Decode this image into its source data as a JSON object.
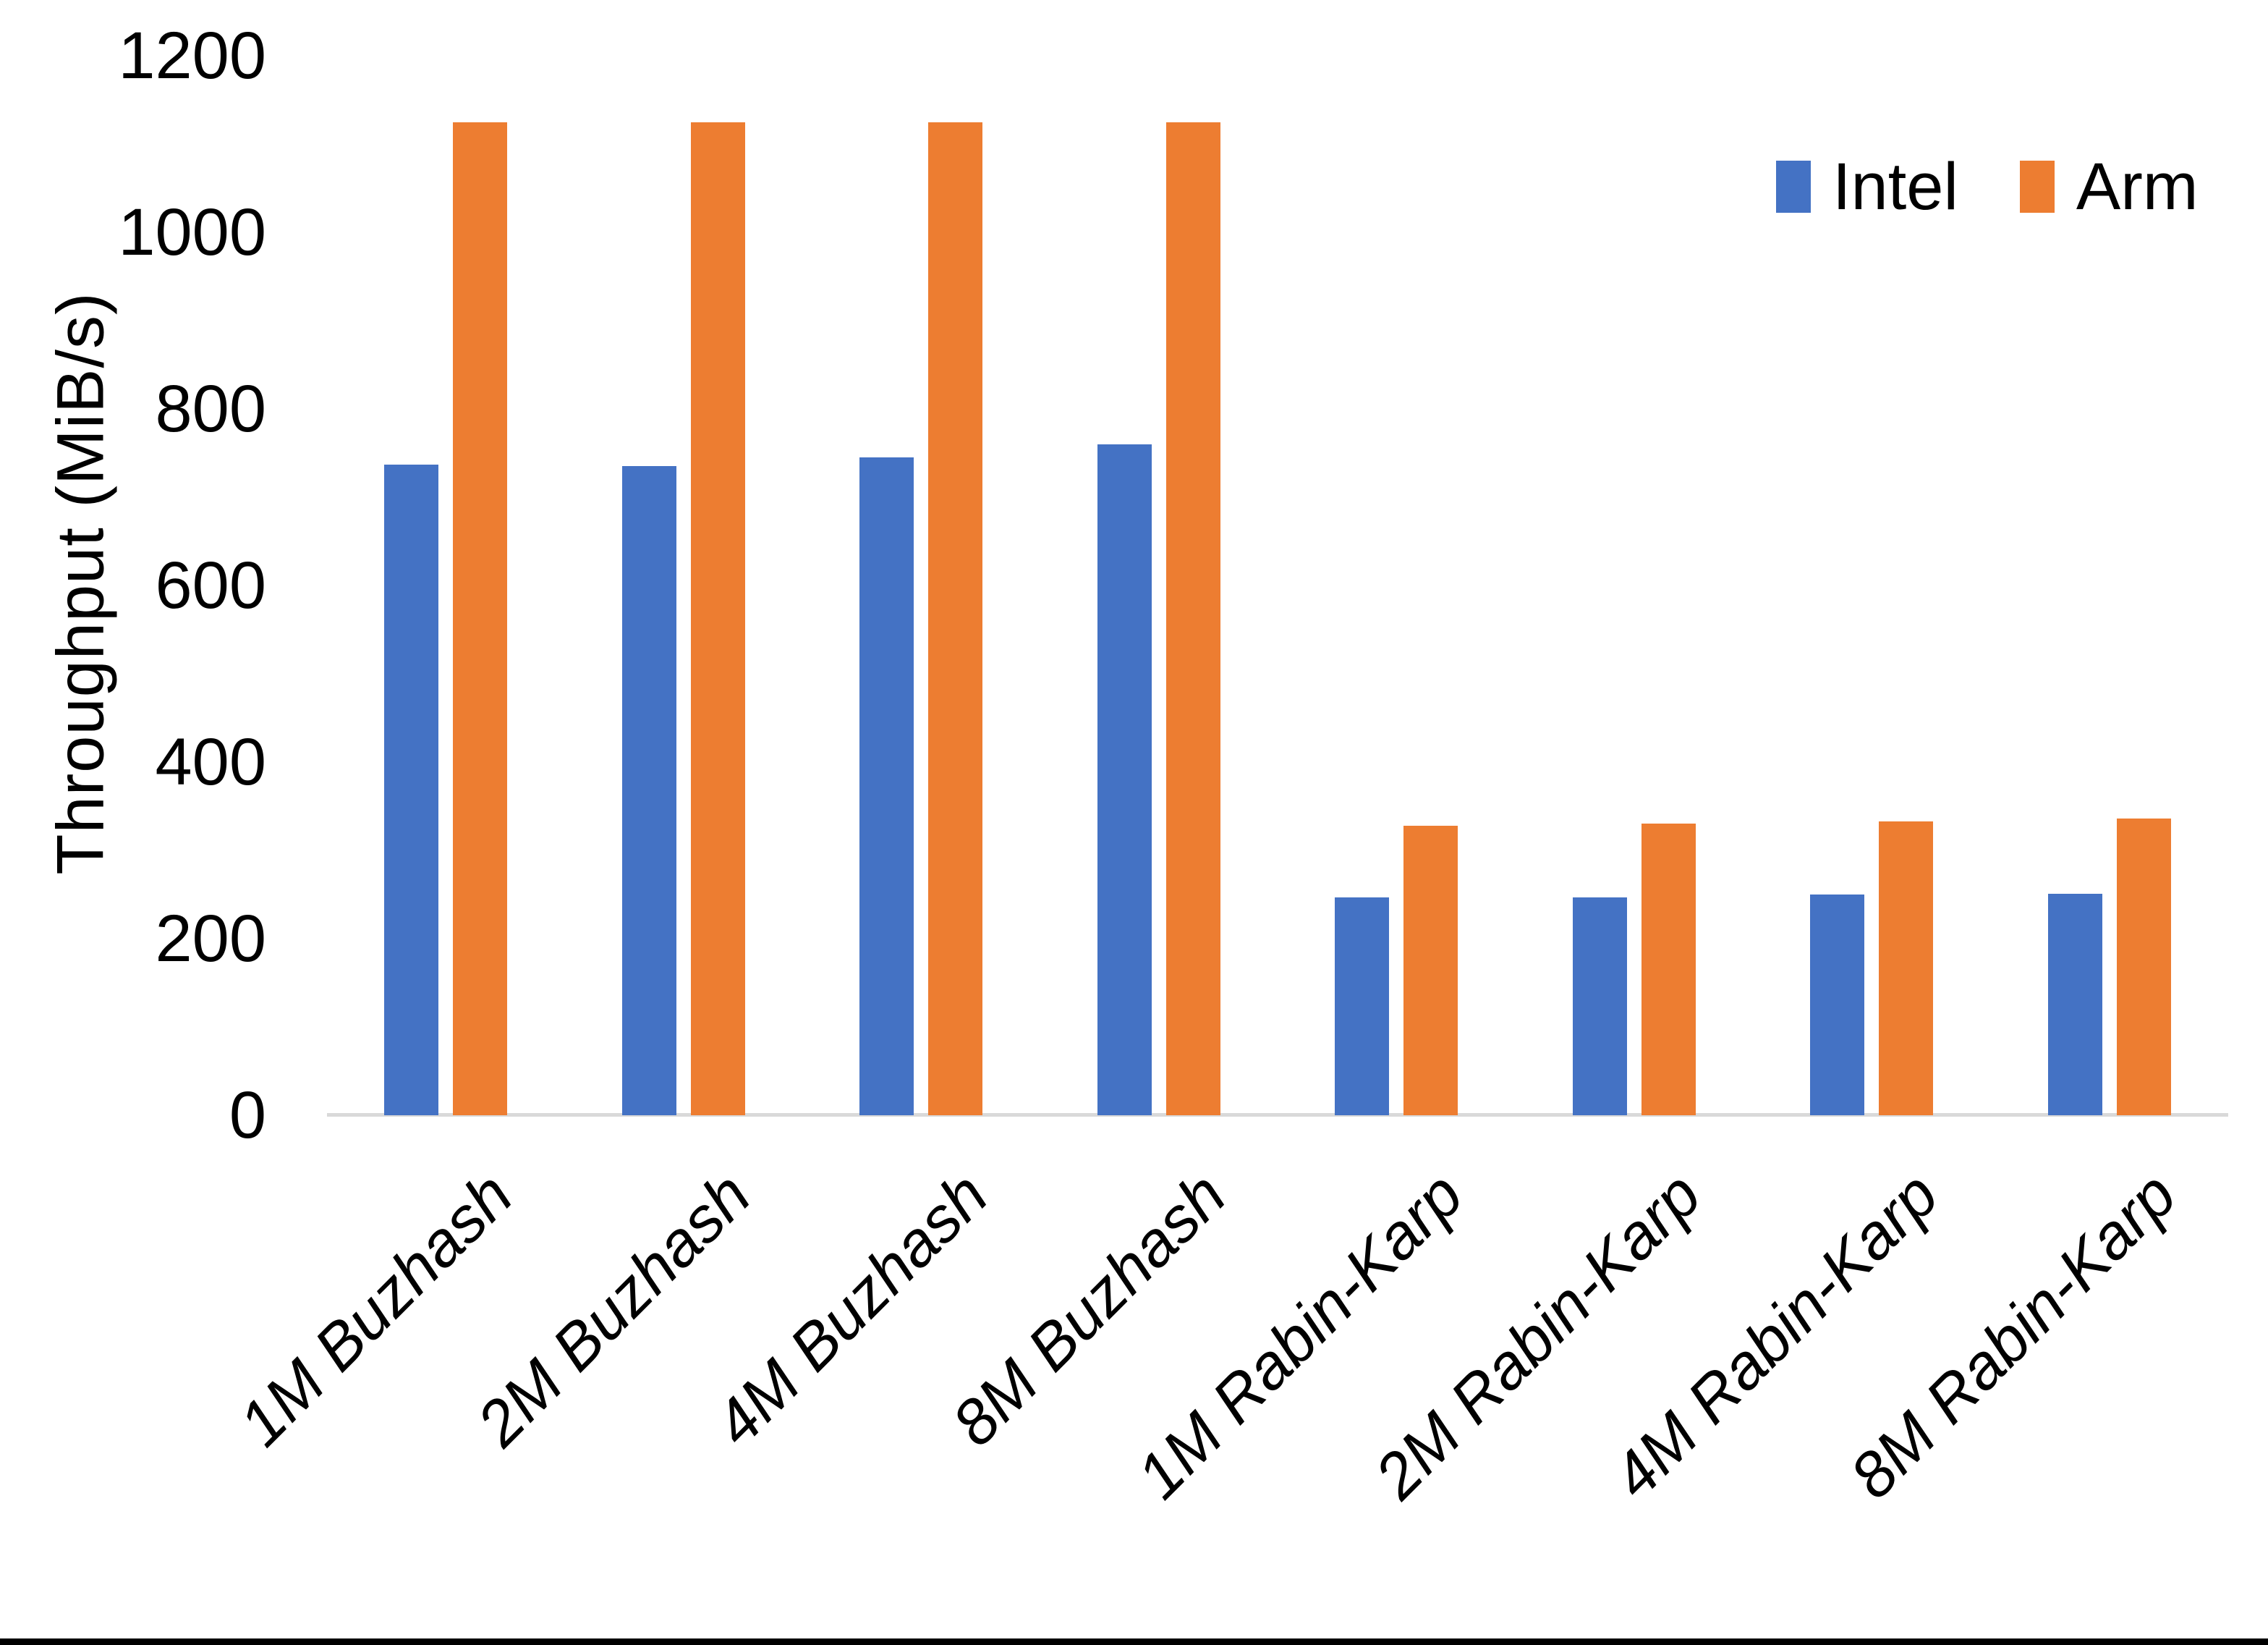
{
  "chart_data": {
    "type": "bar",
    "title": "",
    "xlabel": "",
    "ylabel": "Throughput (MiB/s)",
    "ylim": [
      0,
      1200
    ],
    "yticks": [
      0,
      200,
      400,
      600,
      800,
      1000,
      1200
    ],
    "grid": false,
    "legend_position": "top-right",
    "background_color": "#ffffff",
    "axis_line_color": "#d9d9d9",
    "text_color": "#000000",
    "categories": [
      "1M Buzhash",
      "2M Buzhash",
      "4M Buzhash",
      "8M Buzhash",
      "1M Rabin-Karp",
      "2M Rabin-Karp",
      "4M Rabin-Karp",
      "8M Rabin-Karp"
    ],
    "series": [
      {
        "name": "Intel",
        "color": "#4472C4",
        "values": [
          737,
          735,
          745,
          760,
          247,
          247,
          250,
          251
        ]
      },
      {
        "name": "Arm",
        "color": "#ED7D31",
        "values": [
          1125,
          1125,
          1125,
          1125,
          328,
          330,
          333,
          336
        ]
      }
    ]
  }
}
